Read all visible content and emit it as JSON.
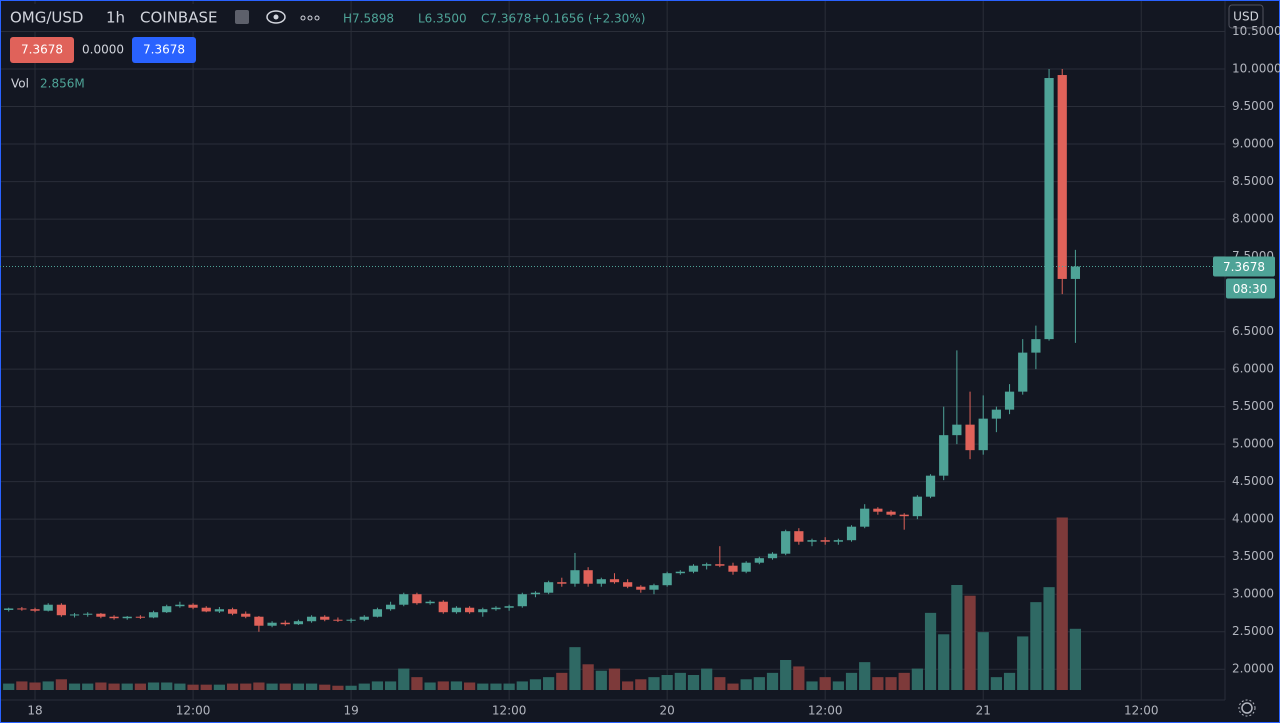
{
  "chart_data": {
    "type": "candlestick",
    "symbol": "OMG/USD",
    "interval": "1h",
    "exchange": "COINBASE",
    "ohlc_header": [
      "H7.5898",
      "L6.3500",
      "C7.3678",
      "+0.1656 (+2.30%)"
    ],
    "badges": [
      "7.3678",
      "0.0000",
      "7.3678"
    ],
    "volume_label": "Vol",
    "volume_value_label": "2.856M",
    "currency": "USD",
    "countdown": "08:30",
    "last_price": {
      "value": 7.3678,
      "label": "7.3678"
    },
    "up_color": "#4ea397",
    "down_color": "#e0625a",
    "volume_up_color": "#2f6964",
    "volume_down_color": "#7d3a3a",
    "candles": [
      [
        2.79,
        2.82,
        2.77,
        2.81
      ],
      [
        2.81,
        2.83,
        2.78,
        2.8
      ],
      [
        2.8,
        2.82,
        2.76,
        2.78
      ],
      [
        2.78,
        2.88,
        2.77,
        2.86
      ],
      [
        2.86,
        2.88,
        2.7,
        2.72
      ],
      [
        2.72,
        2.75,
        2.69,
        2.73
      ],
      [
        2.73,
        2.76,
        2.7,
        2.74
      ],
      [
        2.74,
        2.75,
        2.68,
        2.7
      ],
      [
        2.7,
        2.72,
        2.66,
        2.68
      ],
      [
        2.68,
        2.71,
        2.66,
        2.7
      ],
      [
        2.7,
        2.72,
        2.67,
        2.69
      ],
      [
        2.69,
        2.78,
        2.68,
        2.76
      ],
      [
        2.76,
        2.86,
        2.75,
        2.84
      ],
      [
        2.84,
        2.9,
        2.82,
        2.86
      ],
      [
        2.86,
        2.88,
        2.8,
        2.82
      ],
      [
        2.82,
        2.84,
        2.76,
        2.77
      ],
      [
        2.77,
        2.83,
        2.75,
        2.8
      ],
      [
        2.8,
        2.82,
        2.72,
        2.74
      ],
      [
        2.74,
        2.77,
        2.68,
        2.7
      ],
      [
        2.7,
        2.71,
        2.5,
        2.58
      ],
      [
        2.58,
        2.64,
        2.56,
        2.62
      ],
      [
        2.62,
        2.65,
        2.58,
        2.6
      ],
      [
        2.6,
        2.66,
        2.59,
        2.64
      ],
      [
        2.64,
        2.72,
        2.62,
        2.7
      ],
      [
        2.7,
        2.72,
        2.64,
        2.66
      ],
      [
        2.66,
        2.69,
        2.63,
        2.65
      ],
      [
        2.65,
        2.68,
        2.62,
        2.66
      ],
      [
        2.66,
        2.72,
        2.64,
        2.7
      ],
      [
        2.7,
        2.82,
        2.69,
        2.8
      ],
      [
        2.8,
        2.9,
        2.78,
        2.86
      ],
      [
        2.86,
        3.02,
        2.84,
        3.0
      ],
      [
        3.0,
        3.02,
        2.86,
        2.88
      ],
      [
        2.88,
        2.92,
        2.86,
        2.9
      ],
      [
        2.9,
        2.92,
        2.74,
        2.76
      ],
      [
        2.76,
        2.84,
        2.74,
        2.82
      ],
      [
        2.82,
        2.84,
        2.74,
        2.76
      ],
      [
        2.76,
        2.82,
        2.7,
        2.8
      ],
      [
        2.8,
        2.84,
        2.78,
        2.82
      ],
      [
        2.82,
        2.86,
        2.78,
        2.84
      ],
      [
        2.84,
        3.02,
        2.82,
        3.0
      ],
      [
        3.0,
        3.04,
        2.96,
        3.02
      ],
      [
        3.02,
        3.18,
        3.0,
        3.16
      ],
      [
        3.16,
        3.22,
        3.1,
        3.14
      ],
      [
        3.14,
        3.55,
        3.1,
        3.32
      ],
      [
        3.32,
        3.36,
        3.1,
        3.14
      ],
      [
        3.14,
        3.22,
        3.1,
        3.2
      ],
      [
        3.2,
        3.28,
        3.14,
        3.16
      ],
      [
        3.16,
        3.2,
        3.08,
        3.1
      ],
      [
        3.1,
        3.12,
        3.02,
        3.06
      ],
      [
        3.06,
        3.14,
        3.0,
        3.12
      ],
      [
        3.12,
        3.3,
        3.1,
        3.28
      ],
      [
        3.28,
        3.32,
        3.26,
        3.3
      ],
      [
        3.3,
        3.4,
        3.28,
        3.38
      ],
      [
        3.38,
        3.42,
        3.33,
        3.4
      ],
      [
        3.4,
        3.64,
        3.36,
        3.38
      ],
      [
        3.38,
        3.42,
        3.26,
        3.3
      ],
      [
        3.3,
        3.44,
        3.28,
        3.42
      ],
      [
        3.42,
        3.5,
        3.4,
        3.48
      ],
      [
        3.48,
        3.56,
        3.46,
        3.54
      ],
      [
        3.54,
        3.86,
        3.52,
        3.84
      ],
      [
        3.84,
        3.88,
        3.66,
        3.7
      ],
      [
        3.7,
        3.74,
        3.64,
        3.72
      ],
      [
        3.72,
        3.76,
        3.66,
        3.7
      ],
      [
        3.7,
        3.74,
        3.66,
        3.72
      ],
      [
        3.72,
        3.92,
        3.7,
        3.9
      ],
      [
        3.9,
        4.2,
        3.88,
        4.14
      ],
      [
        4.14,
        4.16,
        4.06,
        4.1
      ],
      [
        4.1,
        4.12,
        4.04,
        4.06
      ],
      [
        4.06,
        4.08,
        3.86,
        4.04
      ],
      [
        4.04,
        4.32,
        4.0,
        4.3
      ],
      [
        4.3,
        4.6,
        4.28,
        4.58
      ],
      [
        4.58,
        5.5,
        4.52,
        5.12
      ],
      [
        5.12,
        6.25,
        5.0,
        5.26
      ],
      [
        5.26,
        5.7,
        4.8,
        4.92
      ],
      [
        4.92,
        5.65,
        4.86,
        5.34
      ],
      [
        5.34,
        5.5,
        5.16,
        5.46
      ],
      [
        5.46,
        5.8,
        5.4,
        5.7
      ],
      [
        5.7,
        6.4,
        5.66,
        6.22
      ],
      [
        6.22,
        6.58,
        6.0,
        6.4
      ],
      [
        6.4,
        10.0,
        6.38,
        9.88
      ],
      [
        9.92,
        10.0,
        7.0,
        7.2022
      ],
      [
        7.2022,
        7.5898,
        6.35,
        7.3678
      ]
    ],
    "volume": [
      0.3,
      0.4,
      0.35,
      0.4,
      0.5,
      0.3,
      0.3,
      0.35,
      0.3,
      0.3,
      0.3,
      0.35,
      0.35,
      0.3,
      0.25,
      0.25,
      0.25,
      0.3,
      0.3,
      0.35,
      0.3,
      0.3,
      0.3,
      0.3,
      0.25,
      0.2,
      0.2,
      0.3,
      0.4,
      0.4,
      1.0,
      0.6,
      0.35,
      0.4,
      0.4,
      0.35,
      0.3,
      0.3,
      0.3,
      0.4,
      0.5,
      0.6,
      0.8,
      2.0,
      1.2,
      0.9,
      1.0,
      0.4,
      0.5,
      0.6,
      0.7,
      0.8,
      0.7,
      1.0,
      0.6,
      0.3,
      0.5,
      0.6,
      0.8,
      1.4,
      1.1,
      0.4,
      0.6,
      0.4,
      0.8,
      1.3,
      0.6,
      0.6,
      0.8,
      1.0,
      3.6,
      2.6,
      4.9,
      4.4,
      2.7,
      0.6,
      0.8,
      2.5,
      4.1,
      4.8,
      8.05,
      2.856
    ],
    "volume_lim": [
      0,
      14
    ],
    "xlim": [
      -0.66,
      92.36
    ],
    "xticks": [
      {
        "value": 2,
        "label": "18"
      },
      {
        "value": 14,
        "label": "12:00"
      },
      {
        "value": 26,
        "label": "19"
      },
      {
        "value": 38,
        "label": "12:00"
      },
      {
        "value": 50,
        "label": "20"
      },
      {
        "value": 62,
        "label": "12:00"
      },
      {
        "value": 74,
        "label": "21"
      },
      {
        "value": 86,
        "label": "12:00"
      }
    ],
    "ylim": [
      1.59,
      10.92
    ],
    "yticks": [
      {
        "value": 2.0,
        "label": "2.0000"
      },
      {
        "value": 2.5,
        "label": "2.5000"
      },
      {
        "value": 3.0,
        "label": "3.0000"
      },
      {
        "value": 3.5,
        "label": "3.5000"
      },
      {
        "value": 4.0,
        "label": "4.0000"
      },
      {
        "value": 4.5,
        "label": "4.5000"
      },
      {
        "value": 5.0,
        "label": "5.0000"
      },
      {
        "value": 5.5,
        "label": "5.5000"
      },
      {
        "value": 6.0,
        "label": "6.0000"
      },
      {
        "value": 6.5,
        "label": "6.5000"
      },
      {
        "value": 7.0,
        "label": "7.0000"
      },
      {
        "value": 7.5,
        "label": "7.5000"
      },
      {
        "value": 8.0,
        "label": "8.0000"
      },
      {
        "value": 8.5,
        "label": "8.5000"
      },
      {
        "value": 9.0,
        "label": "9.0000"
      },
      {
        "value": 9.5,
        "label": "9.5000"
      },
      {
        "value": 10.0,
        "label": "10.0000"
      },
      {
        "value": 10.5,
        "label": "10.5000"
      }
    ],
    "grid": true
  }
}
